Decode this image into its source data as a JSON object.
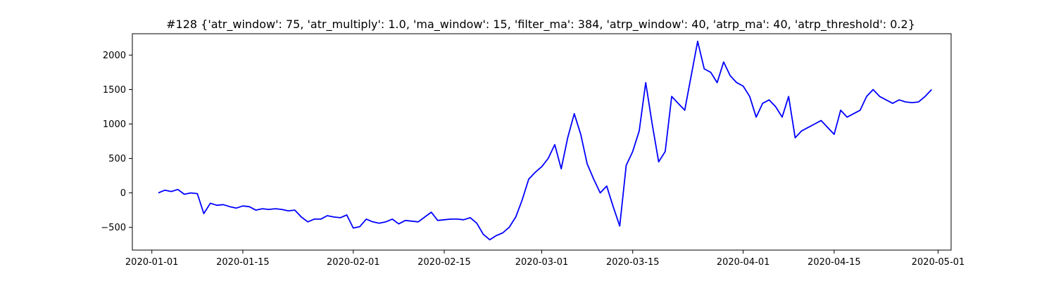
{
  "chart_data": {
    "type": "line",
    "title": "#128 {'atr_window': 75, 'atr_multiply': 1.0, 'ma_window': 15, 'filter_ma': 384, 'atrp_window': 40, 'atrp_ma': 40, 'atrp_threshold': 0.2}",
    "xlabel": "",
    "ylabel": "",
    "x_type": "date",
    "xlim": [
      "2019-12-29",
      "2020-05-03"
    ],
    "ylim": [
      -830,
      2310
    ],
    "x_ticks": [
      "2020-01-01",
      "2020-01-15",
      "2020-02-01",
      "2020-02-15",
      "2020-03-01",
      "2020-03-15",
      "2020-04-01",
      "2020-04-15",
      "2020-05-01"
    ],
    "y_ticks": [
      -500,
      0,
      500,
      1000,
      1500,
      2000
    ],
    "grid": false,
    "legend": "none",
    "series_color": "#0000ff",
    "series": [
      {
        "x": [
          "2020-01-02",
          "2020-01-03",
          "2020-01-04",
          "2020-01-05",
          "2020-01-06",
          "2020-01-07",
          "2020-01-08",
          "2020-01-09",
          "2020-01-10",
          "2020-01-11",
          "2020-01-12",
          "2020-01-13",
          "2020-01-14",
          "2020-01-15",
          "2020-01-16",
          "2020-01-17",
          "2020-01-18",
          "2020-01-19",
          "2020-01-20",
          "2020-01-21",
          "2020-01-22",
          "2020-01-23",
          "2020-01-24",
          "2020-01-25",
          "2020-01-26",
          "2020-01-27",
          "2020-01-28",
          "2020-01-29",
          "2020-01-30",
          "2020-01-31",
          "2020-02-01",
          "2020-02-02",
          "2020-02-03",
          "2020-02-04",
          "2020-02-05",
          "2020-02-06",
          "2020-02-07",
          "2020-02-08",
          "2020-02-09",
          "2020-02-10",
          "2020-02-11",
          "2020-02-12",
          "2020-02-13",
          "2020-02-14",
          "2020-02-15",
          "2020-02-16",
          "2020-02-17",
          "2020-02-18",
          "2020-02-19",
          "2020-02-20",
          "2020-02-21",
          "2020-02-22",
          "2020-02-23",
          "2020-02-24",
          "2020-02-25",
          "2020-02-26",
          "2020-02-27",
          "2020-02-28",
          "2020-02-29",
          "2020-03-01",
          "2020-03-02",
          "2020-03-03",
          "2020-03-04",
          "2020-03-05",
          "2020-03-06",
          "2020-03-07",
          "2020-03-08",
          "2020-03-09",
          "2020-03-10",
          "2020-03-11",
          "2020-03-12",
          "2020-03-13",
          "2020-03-14",
          "2020-03-15",
          "2020-03-16",
          "2020-03-17",
          "2020-03-18",
          "2020-03-19",
          "2020-03-20",
          "2020-03-21",
          "2020-03-22",
          "2020-03-23",
          "2020-03-24",
          "2020-03-25",
          "2020-03-26",
          "2020-03-27",
          "2020-03-28",
          "2020-03-29",
          "2020-03-30",
          "2020-03-31",
          "2020-04-01",
          "2020-04-02",
          "2020-04-03",
          "2020-04-04",
          "2020-04-05",
          "2020-04-06",
          "2020-04-07",
          "2020-04-08",
          "2020-04-09",
          "2020-04-10",
          "2020-04-11",
          "2020-04-12",
          "2020-04-13",
          "2020-04-14",
          "2020-04-15",
          "2020-04-16",
          "2020-04-17",
          "2020-04-18",
          "2020-04-19",
          "2020-04-20",
          "2020-04-21",
          "2020-04-22",
          "2020-04-23",
          "2020-04-24",
          "2020-04-25",
          "2020-04-26",
          "2020-04-27",
          "2020-04-28",
          "2020-04-29",
          "2020-04-30"
        ],
        "values": [
          0,
          40,
          20,
          50,
          -20,
          0,
          -10,
          -300,
          -150,
          -180,
          -170,
          -200,
          -220,
          -190,
          -200,
          -250,
          -230,
          -240,
          -230,
          -240,
          -260,
          -250,
          -350,
          -420,
          -380,
          -380,
          -330,
          -350,
          -360,
          -320,
          -510,
          -490,
          -380,
          -420,
          -440,
          -420,
          -380,
          -450,
          -400,
          -410,
          -420,
          -350,
          -280,
          -400,
          -390,
          -380,
          -380,
          -390,
          -360,
          -440,
          -600,
          -680,
          -620,
          -580,
          -500,
          -350,
          -100,
          200,
          300,
          380,
          500,
          700,
          350,
          800,
          1150,
          850,
          420,
          200,
          0,
          100,
          -200,
          -480,
          400,
          600,
          900,
          1600,
          1000,
          450,
          600,
          1400,
          1300,
          1200,
          1700,
          2200,
          1800,
          1750,
          1600,
          1900,
          1700,
          1600,
          1550,
          1400,
          1100,
          1300,
          1350,
          1250,
          1100,
          1400,
          800,
          900,
          950,
          1000,
          1050,
          950,
          850,
          1200,
          1100,
          1150,
          1200,
          1400,
          1500,
          1400,
          1350,
          1300,
          1350,
          1320,
          1310,
          1320,
          1400,
          1500
        ]
      }
    ]
  }
}
